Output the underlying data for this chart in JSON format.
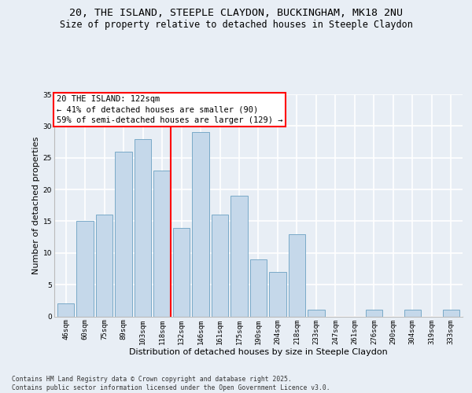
{
  "title1": "20, THE ISLAND, STEEPLE CLAYDON, BUCKINGHAM, MK18 2NU",
  "title2": "Size of property relative to detached houses in Steeple Claydon",
  "xlabel": "Distribution of detached houses by size in Steeple Claydon",
  "ylabel": "Number of detached properties",
  "categories": [
    "46sqm",
    "60sqm",
    "75sqm",
    "89sqm",
    "103sqm",
    "118sqm",
    "132sqm",
    "146sqm",
    "161sqm",
    "175sqm",
    "190sqm",
    "204sqm",
    "218sqm",
    "233sqm",
    "247sqm",
    "261sqm",
    "276sqm",
    "290sqm",
    "304sqm",
    "319sqm",
    "333sqm"
  ],
  "values": [
    2,
    15,
    16,
    26,
    28,
    23,
    14,
    29,
    16,
    19,
    9,
    7,
    13,
    1,
    0,
    0,
    1,
    0,
    1,
    0,
    1
  ],
  "bar_color": "#c5d8ea",
  "bar_edge_color": "#7aaac8",
  "highlight_bar_index": 5,
  "highlight_line_color": "red",
  "annotation_text": "20 THE ISLAND: 122sqm\n← 41% of detached houses are smaller (90)\n59% of semi-detached houses are larger (129) →",
  "annotation_box_facecolor": "white",
  "annotation_box_edgecolor": "red",
  "ylim": [
    0,
    35
  ],
  "yticks": [
    0,
    5,
    10,
    15,
    20,
    25,
    30,
    35
  ],
  "footer_text": "Contains HM Land Registry data © Crown copyright and database right 2025.\nContains public sector information licensed under the Open Government Licence v3.0.",
  "background_color": "#e8eef5",
  "grid_color": "white",
  "title1_fontsize": 9.5,
  "title2_fontsize": 8.5,
  "axis_label_fontsize": 8,
  "tick_fontsize": 6.5,
  "annotation_fontsize": 7.5,
  "footer_fontsize": 5.8
}
